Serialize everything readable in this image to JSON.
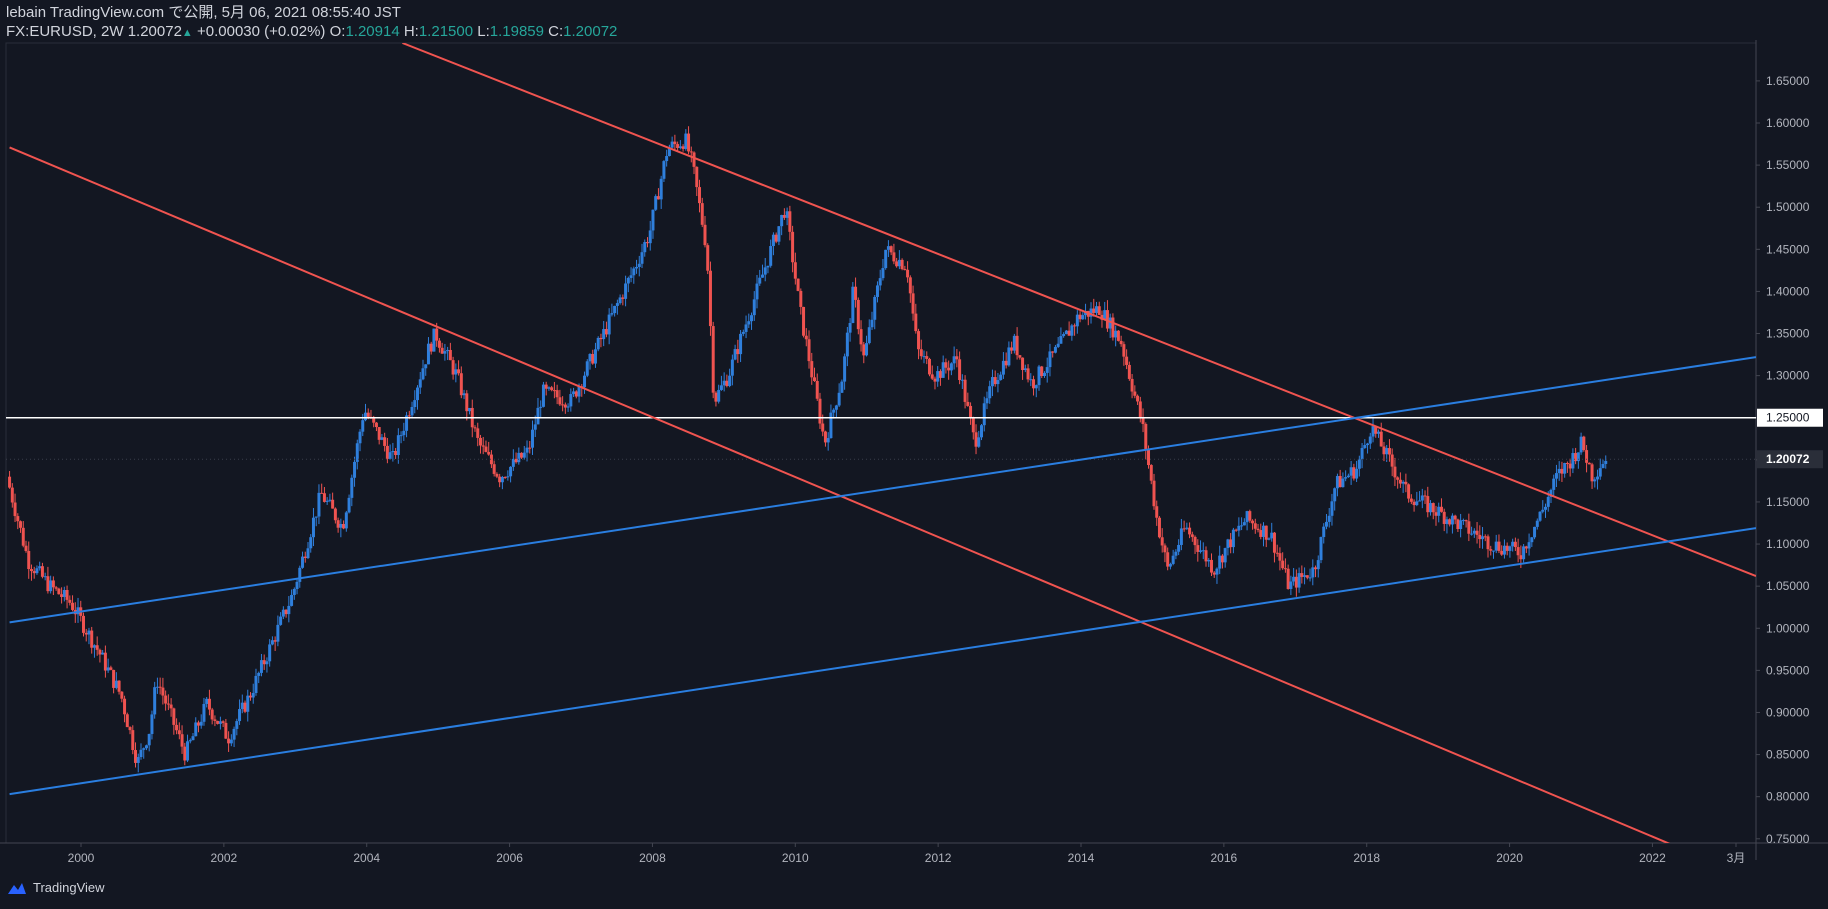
{
  "header": {
    "line1": "lebain TradingView.com で公開, 5月 06, 2021 08:55:40 JST",
    "symbol": "FX:EURUSD, 2W",
    "last": "1.20072",
    "change": "+0.00030 (+0.02%)",
    "o_label": "O:",
    "o_value": "1.20914",
    "h_label": "H:",
    "h_value": "1.21500",
    "l_label": "L:",
    "l_value": "1.19859",
    "c_label": "C:",
    "c_value": "1.20072"
  },
  "footer": {
    "brand": "TradingView"
  },
  "colors": {
    "background": "#131722",
    "up": "#2f7fdc",
    "down": "#ef5350",
    "trend_red": "#f05450",
    "trend_blue": "#2a7ee0",
    "level_line": "#ffffff",
    "axis_text": "#b2b5be"
  },
  "chart_data": {
    "type": "candlestick",
    "symbol": "EURUSD",
    "interval": "2W",
    "xlim": [
      1998.95,
      2023.45
    ],
    "ylim": [
      0.745,
      1.695
    ],
    "y_ticks": [
      "0.75000",
      "0.80000",
      "0.85000",
      "0.90000",
      "0.95000",
      "1.00000",
      "1.05000",
      "1.10000",
      "1.15000",
      "1.20000",
      "1.25000",
      "1.30000",
      "1.35000",
      "1.40000",
      "1.45000",
      "1.50000",
      "1.55000",
      "1.60000",
      "1.65000"
    ],
    "x_ticks": [
      {
        "x": 2000,
        "label": "2000"
      },
      {
        "x": 2002,
        "label": "2002"
      },
      {
        "x": 2004,
        "label": "2004"
      },
      {
        "x": 2006,
        "label": "2006"
      },
      {
        "x": 2008,
        "label": "2008"
      },
      {
        "x": 2010,
        "label": "2010"
      },
      {
        "x": 2012,
        "label": "2012"
      },
      {
        "x": 2014,
        "label": "2014"
      },
      {
        "x": 2016,
        "label": "2016"
      },
      {
        "x": 2018,
        "label": "2018"
      },
      {
        "x": 2020,
        "label": "2020"
      },
      {
        "x": 2022,
        "label": "2022"
      },
      {
        "x": 2023.17,
        "label": "3月"
      }
    ],
    "price_keypoints": [
      [
        1999.0,
        1.18
      ],
      [
        1999.3,
        1.08
      ],
      [
        1999.6,
        1.05
      ],
      [
        1999.9,
        1.03
      ],
      [
        2000.3,
        0.97
      ],
      [
        2000.6,
        0.92
      ],
      [
        2000.83,
        0.84
      ],
      [
        2001.0,
        0.88
      ],
      [
        2001.1,
        0.94
      ],
      [
        2001.5,
        0.85
      ],
      [
        2001.8,
        0.91
      ],
      [
        2002.1,
        0.87
      ],
      [
        2002.4,
        0.92
      ],
      [
        2002.7,
        0.98
      ],
      [
        2003.0,
        1.04
      ],
      [
        2003.4,
        1.16
      ],
      [
        2003.7,
        1.12
      ],
      [
        2004.0,
        1.26
      ],
      [
        2004.4,
        1.2
      ],
      [
        2004.9,
        1.33
      ],
      [
        2005.0,
        1.35
      ],
      [
        2005.3,
        1.3
      ],
      [
        2005.6,
        1.22
      ],
      [
        2005.9,
        1.18
      ],
      [
        2006.3,
        1.21
      ],
      [
        2006.5,
        1.28
      ],
      [
        2006.9,
        1.27
      ],
      [
        2007.3,
        1.34
      ],
      [
        2007.8,
        1.43
      ],
      [
        2008.0,
        1.47
      ],
      [
        2008.25,
        1.57
      ],
      [
        2008.5,
        1.58
      ],
      [
        2008.6,
        1.55
      ],
      [
        2008.8,
        1.45
      ],
      [
        2008.9,
        1.27
      ],
      [
        2009.1,
        1.3
      ],
      [
        2009.5,
        1.4
      ],
      [
        2009.9,
        1.5
      ],
      [
        2010.1,
        1.38
      ],
      [
        2010.45,
        1.22
      ],
      [
        2010.7,
        1.3
      ],
      [
        2010.85,
        1.4
      ],
      [
        2011.0,
        1.32
      ],
      [
        2011.3,
        1.45
      ],
      [
        2011.6,
        1.43
      ],
      [
        2011.75,
        1.33
      ],
      [
        2012.0,
        1.3
      ],
      [
        2012.3,
        1.32
      ],
      [
        2012.55,
        1.22
      ],
      [
        2012.8,
        1.29
      ],
      [
        2013.1,
        1.34
      ],
      [
        2013.35,
        1.29
      ],
      [
        2013.7,
        1.33
      ],
      [
        2014.0,
        1.37
      ],
      [
        2014.3,
        1.38
      ],
      [
        2014.6,
        1.34
      ],
      [
        2014.9,
        1.24
      ],
      [
        2015.1,
        1.13
      ],
      [
        2015.25,
        1.07
      ],
      [
        2015.5,
        1.12
      ],
      [
        2015.9,
        1.07
      ],
      [
        2016.1,
        1.1
      ],
      [
        2016.35,
        1.13
      ],
      [
        2016.7,
        1.11
      ],
      [
        2016.95,
        1.05
      ],
      [
        2017.3,
        1.07
      ],
      [
        2017.6,
        1.17
      ],
      [
        2017.9,
        1.19
      ],
      [
        2018.1,
        1.24
      ],
      [
        2018.35,
        1.2
      ],
      [
        2018.6,
        1.16
      ],
      [
        2019.0,
        1.14
      ],
      [
        2019.4,
        1.12
      ],
      [
        2019.8,
        1.1
      ],
      [
        2020.2,
        1.09
      ],
      [
        2020.5,
        1.14
      ],
      [
        2020.7,
        1.18
      ],
      [
        2020.9,
        1.2
      ],
      [
        2021.05,
        1.22
      ],
      [
        2021.2,
        1.18
      ],
      [
        2021.35,
        1.2
      ]
    ],
    "trendlines": [
      {
        "color": "red",
        "points": [
          [
            1999.0,
            1.571
          ],
          [
            2023.45,
            0.701
          ]
        ]
      },
      {
        "color": "red",
        "points": [
          [
            2004.5,
            1.695
          ],
          [
            2023.45,
            1.062
          ]
        ]
      },
      {
        "color": "blue",
        "points": [
          [
            1999.0,
            1.007
          ],
          [
            2023.45,
            1.322
          ]
        ]
      },
      {
        "color": "blue",
        "points": [
          [
            1999.0,
            0.803
          ],
          [
            2023.45,
            1.119
          ]
        ]
      }
    ],
    "horizontal_level": {
      "y": 1.25,
      "label": "1.25000"
    },
    "last_price": {
      "y": 1.20072,
      "label": "1.20072"
    }
  }
}
